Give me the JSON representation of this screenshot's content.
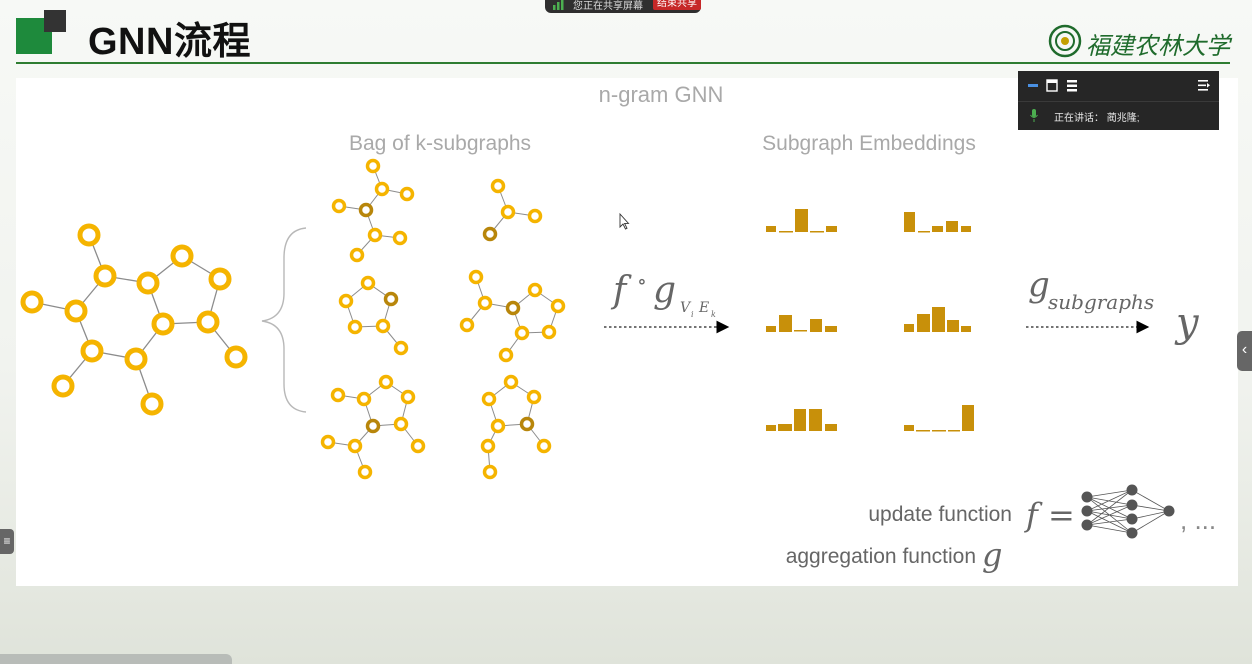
{
  "header": {
    "title": "GNN流程",
    "logo_text": "福建农林大学"
  },
  "screen_share": {
    "status_text": "您正在共享屏幕",
    "stop_button": "结束共享"
  },
  "meeting_panel": {
    "speaker_label": "正在讲话：",
    "speaker_name": "蔺兆隆;"
  },
  "slide": {
    "title": "n-gram GNN",
    "bag_label": "Bag of k-subgraphs",
    "embeddings_label": "Subgraph Embeddings",
    "compose_f": "f",
    "compose_op": "∘",
    "compose_g": "g",
    "compose_sub_v": "V",
    "compose_sub_i": "i",
    "compose_sub_e": "E",
    "compose_sub_k": "k",
    "g_symbol": "g",
    "g_subscript": "subgraphs",
    "output_y": "y",
    "update_function_label": "update function",
    "aggregation_function_label": "aggregation function",
    "f_eq": "f =",
    "g_var": "g",
    "ellipsis": ", ..."
  },
  "colors": {
    "node_yellow": "#f5b400",
    "node_dark": "#b8860b",
    "bar_color": "#c8900a",
    "edge_gray": "#8c8c8c",
    "header_green": "#1e8a3c",
    "nn_gray": "#555555"
  },
  "icons": {
    "cursor": "arrow-cursor-icon",
    "mic": "microphone-icon",
    "signal": "signal-bars-icon"
  }
}
